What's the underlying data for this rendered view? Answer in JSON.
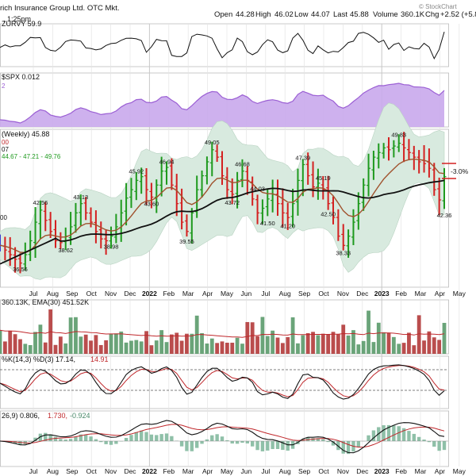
{
  "header": {
    "company": "rich Insurance Group Ltd.  OTC Mkt.",
    "time": ", 1:25pm",
    "open_label": "Open",
    "open_value": "44.28",
    "high_label": "High",
    "high_value": "46.02",
    "low_label": "Low",
    "low_value": "44.07",
    "last_label": "Last",
    "last_value": "45.88",
    "volume_label": "Volume",
    "volume_value": "360.1K",
    "chg_label": "Chg",
    "chg_value": "+2.52 (+5.8",
    "brand": "© StockChart"
  },
  "panel_rsi": {
    "label": "ZURVY 59.9"
  },
  "panel_relative": {
    "label": "$SPX 0.012",
    "sub": "2"
  },
  "panel_price": {
    "label": "(Weekly) 45.88",
    "sub1": "00",
    "sub2": "07",
    "bb_label": "44.67 - 47.21 - 49.76",
    "edge_value": "00",
    "change_callout": "-3.0%"
  },
  "panel_volume": {
    "label": "360.13K, EMA(30) 451.52K"
  },
  "panel_stoch": {
    "label1": "%K(14,3) %D(3) 17.14,",
    "label2": "14.91"
  },
  "panel_macd": {
    "label1": "26,9) 0.806,",
    "label2": "1.730,",
    "label3": "-0.924"
  },
  "x_axis": [
    "Jul",
    "Aug",
    "Sep",
    "Oct",
    "Nov",
    "Dec",
    "2022",
    "Feb",
    "Mar",
    "Apr",
    "May",
    "Jun",
    "Jul",
    "Aug",
    "Sep",
    "Oct",
    "Nov",
    "Dec",
    "2023",
    "Feb",
    "Mar",
    "Apr",
    "May"
  ],
  "colors": {
    "up": "#1e9a1e",
    "down": "#d42020",
    "flat": "#3a3ad0",
    "ma_short": "#a0522d",
    "ma_long": "#111111",
    "band": "#dfeee6",
    "rel": "#9b5fd4",
    "vol": "#5a9a6a",
    "vol_down": "#b23a3a",
    "stoch_k": "#111111",
    "stoch_d": "#c0282c",
    "macd_hist": "#8fc0a8"
  },
  "chart_data": {
    "type": "line",
    "title": "",
    "x": [
      "Jul",
      "Aug",
      "Sep",
      "Oct",
      "Nov",
      "Dec",
      "2022",
      "Feb",
      "Mar",
      "Apr",
      "May",
      "Jun",
      "Jul",
      "Aug",
      "Sep",
      "Oct",
      "Nov",
      "Dec",
      "2023",
      "Feb",
      "Mar",
      "Apr",
      "May"
    ],
    "price_annotations": [
      {
        "label": "36.56",
        "value": 36.56
      },
      {
        "label": "42.56",
        "value": 42.56
      },
      {
        "label": "38.62",
        "value": 38.62
      },
      {
        "label": "43.13",
        "value": 43.13
      },
      {
        "label": "38.98",
        "value": 38.98
      },
      {
        "label": "45.92",
        "value": 45.92
      },
      {
        "label": "43.60",
        "value": 43.6
      },
      {
        "label": "46.94",
        "value": 46.94
      },
      {
        "label": "49.05",
        "value": 49.05
      },
      {
        "label": "39.55",
        "value": 39.55
      },
      {
        "label": "43.72",
        "value": 43.72
      },
      {
        "label": "46.68",
        "value": 46.68
      },
      {
        "label": "41.50",
        "value": 41.5
      },
      {
        "label": "44.03",
        "value": 44.03
      },
      {
        "label": "41.20",
        "value": 41.2
      },
      {
        "label": "47.39",
        "value": 47.39
      },
      {
        "label": "42.50",
        "value": 42.5
      },
      {
        "label": "45.19",
        "value": 45.19
      },
      {
        "label": "38.33",
        "value": 38.33
      },
      {
        "label": "49.83",
        "value": 49.83
      },
      {
        "label": "42.36",
        "value": 42.36
      }
    ],
    "ylim": [
      34,
      51
    ],
    "weekly_close": [
      38.5,
      38.0,
      37.5,
      37.0,
      36.6,
      37.5,
      39.0,
      41.0,
      42.3,
      41.2,
      40.0,
      39.0,
      38.8,
      39.5,
      40.5,
      42.0,
      43.0,
      42.0,
      41.0,
      40.0,
      39.2,
      39.0,
      39.5,
      40.5,
      42.0,
      43.6,
      44.5,
      45.5,
      45.9,
      44.5,
      43.7,
      45.0,
      46.5,
      46.9,
      45.0,
      43.0,
      41.0,
      40.0,
      42.0,
      44.5,
      46.0,
      47.5,
      48.8,
      48.0,
      46.0,
      44.5,
      44.0,
      45.5,
      46.5,
      45.5,
      43.5,
      42.0,
      42.5,
      43.5,
      44.0,
      43.0,
      42.0,
      41.5,
      43.0,
      45.5,
      47.2,
      46.0,
      44.8,
      45.2,
      44.5,
      43.0,
      41.5,
      39.5,
      38.5,
      39.5,
      41.0,
      43.0,
      45.0,
      46.8,
      48.0,
      48.5,
      49.0,
      48.8,
      49.2,
      49.5,
      49.0,
      48.5,
      48.0,
      47.5,
      47.3,
      46.8,
      44.5,
      43.4,
      45.9
    ]
  }
}
